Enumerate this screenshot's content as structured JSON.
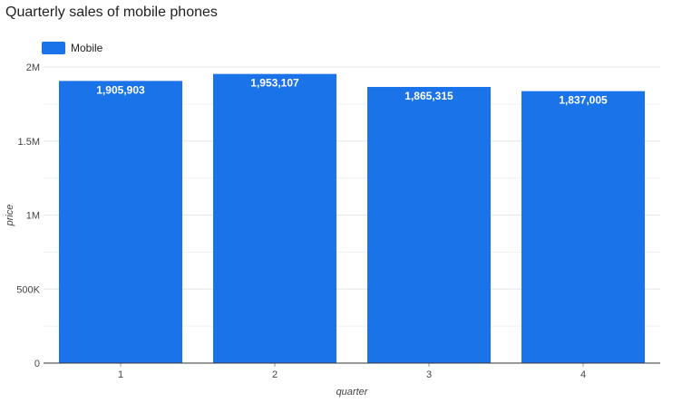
{
  "chart_data": {
    "type": "bar",
    "title": "Quarterly sales of mobile phones",
    "xlabel": "quarter",
    "ylabel": "price",
    "categories": [
      "1",
      "2",
      "3",
      "4"
    ],
    "series": [
      {
        "name": "Mobile",
        "values": [
          1905903,
          1953107,
          1865315,
          1837005
        ],
        "data_labels": [
          "1,905,903",
          "1,953,107",
          "1,865,315",
          "1,837,005"
        ]
      }
    ],
    "ylim": [
      0,
      2000000
    ],
    "y_ticks": [
      0,
      500000,
      1000000,
      1500000,
      2000000
    ],
    "y_tick_labels": [
      "0",
      "500K",
      "1M",
      "1.5M",
      "2M"
    ],
    "grid": true,
    "legend_position": "top-left",
    "colors": {
      "bar": "#1a73e8",
      "grid": "#e6e6e6",
      "axis": "#333333"
    }
  }
}
